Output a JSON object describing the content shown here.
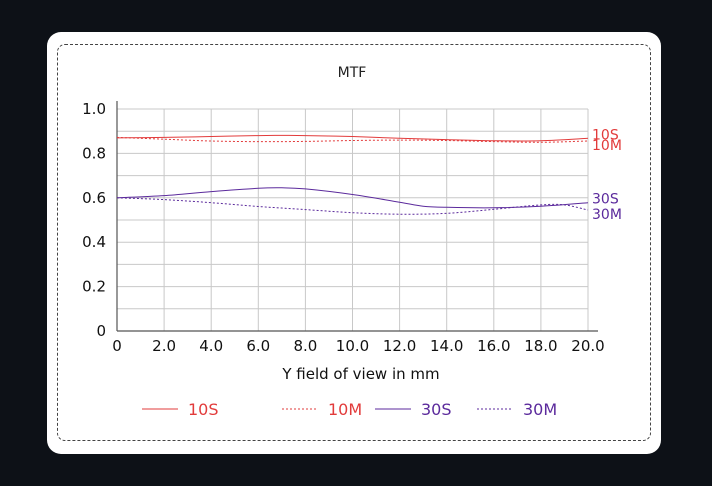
{
  "chart_data": {
    "type": "line",
    "title": "MTF",
    "xlabel": "Y field of view in mm",
    "ylabel": "",
    "xlim": [
      0,
      20
    ],
    "ylim": [
      0,
      1.0
    ],
    "x_ticks": [
      "0",
      "2.0",
      "4.0",
      "6.0",
      "8.0",
      "10.0",
      "12.0",
      "14.0",
      "16.0",
      "18.0",
      "20.0"
    ],
    "y_ticks": [
      "0",
      "0.2",
      "0.4",
      "0.6",
      "0.8",
      "1.0"
    ],
    "grid": true,
    "legend_position": "bottom",
    "series": [
      {
        "name": "10S",
        "color": "#e23b3b",
        "dash": false,
        "x": [
          0,
          2,
          4,
          6,
          7,
          8,
          10,
          12,
          14,
          16,
          18,
          20
        ],
        "y": [
          0.87,
          0.872,
          0.876,
          0.88,
          0.881,
          0.88,
          0.876,
          0.868,
          0.862,
          0.857,
          0.857,
          0.868
        ]
      },
      {
        "name": "10M",
        "color": "#e23b3b",
        "dash": true,
        "x": [
          0,
          2,
          4,
          6,
          8,
          10,
          12,
          14,
          16,
          18,
          20
        ],
        "y": [
          0.872,
          0.864,
          0.856,
          0.853,
          0.854,
          0.858,
          0.86,
          0.858,
          0.853,
          0.85,
          0.856
        ]
      },
      {
        "name": "30S",
        "color": "#5b2a9c",
        "dash": false,
        "x": [
          0,
          2,
          4,
          6,
          7,
          8,
          10,
          12,
          13,
          14,
          16,
          18,
          20
        ],
        "y": [
          0.6,
          0.61,
          0.628,
          0.643,
          0.645,
          0.64,
          0.615,
          0.58,
          0.562,
          0.557,
          0.555,
          0.562,
          0.578
        ]
      },
      {
        "name": "30M",
        "color": "#5b2a9c",
        "dash": true,
        "x": [
          0,
          2,
          4,
          6,
          8,
          10,
          12,
          14,
          16,
          18,
          19,
          20
        ],
        "y": [
          0.6,
          0.592,
          0.578,
          0.561,
          0.547,
          0.533,
          0.526,
          0.53,
          0.548,
          0.568,
          0.568,
          0.545
        ]
      }
    ]
  }
}
